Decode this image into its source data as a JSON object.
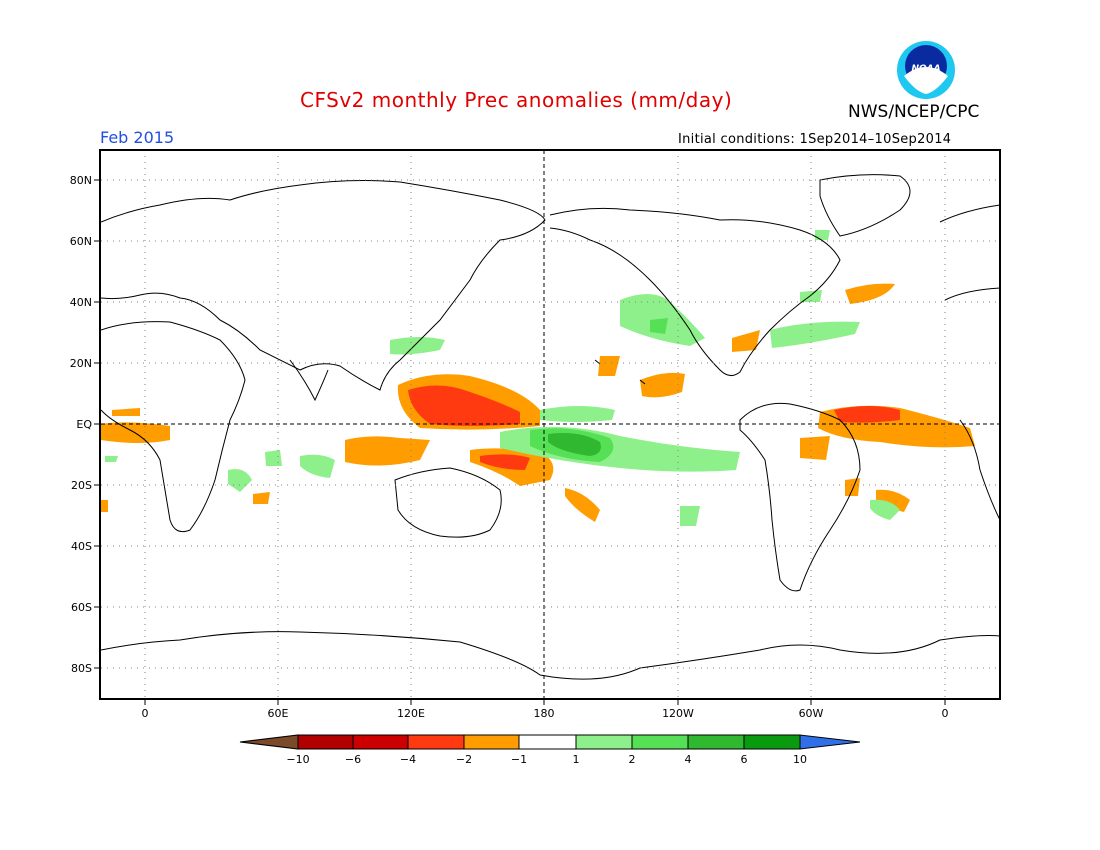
{
  "header": {
    "title": "CFSv2 monthly Prec anomalies (mm/day)",
    "agency": "NWS/NCEP/CPC",
    "month": "Feb 2015",
    "initial_conditions": "Initial conditions: 1Sep2014–10Sep2014",
    "logo_text": "NOAA"
  },
  "map": {
    "lat_labels": [
      "80N",
      "60N",
      "40N",
      "20N",
      "EQ",
      "20S",
      "40S",
      "60S",
      "80S"
    ],
    "lon_labels": [
      "0",
      "60E",
      "120E",
      "180",
      "120W",
      "60W",
      "0"
    ]
  },
  "colorbar": {
    "labels": [
      "−10",
      "−6",
      "−4",
      "−2",
      "−1",
      "1",
      "2",
      "4",
      "6",
      "10"
    ],
    "colors": [
      "#7b4a2a",
      "#b00000",
      "#cc0000",
      "#ff3a10",
      "#ff9d00",
      "#ffffff",
      "#8ef08a",
      "#55e055",
      "#30b830",
      "#0a9a10",
      "#2f6fe8"
    ]
  }
}
